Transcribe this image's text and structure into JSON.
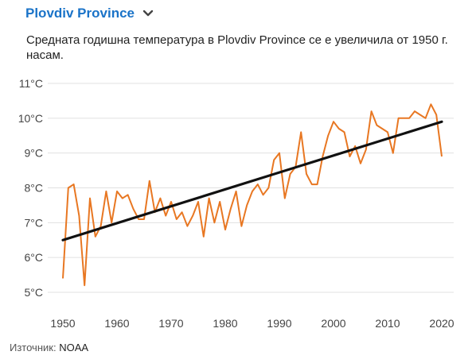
{
  "header": {
    "title": "Plovdiv Province",
    "chevron_icon": "chevron-down-icon"
  },
  "chart_data": {
    "type": "line",
    "title": "Средната годишна температура в Plovdiv Province се е увеличила от 1950 г. насам.",
    "xlabel": "",
    "ylabel": "",
    "xlim": [
      1950,
      2020
    ],
    "ylim": [
      5,
      11
    ],
    "x_ticks": [
      "1950",
      "1960",
      "1970",
      "1980",
      "1990",
      "2000",
      "2010",
      "2020"
    ],
    "y_ticks": [
      "5°C",
      "6°C",
      "7°C",
      "8°C",
      "9°C",
      "10°C",
      "11°C"
    ],
    "grid": true,
    "colors": {
      "series": "#e87722",
      "trend": "#111111",
      "grid": "#e0e0e0"
    },
    "series": [
      {
        "x": [
          1950,
          1951,
          1952,
          1953,
          1954,
          1955,
          1956,
          1957,
          1958,
          1959,
          1960,
          1961,
          1962,
          1963,
          1964,
          1965,
          1966,
          1967,
          1968,
          1969,
          1970,
          1971,
          1972,
          1973,
          1974,
          1975,
          1976,
          1977,
          1978,
          1979,
          1980,
          1981,
          1982,
          1983,
          1984,
          1985,
          1986,
          1987,
          1988,
          1989,
          1990,
          1991,
          1992,
          1993,
          1994,
          1995,
          1996,
          1997,
          1998,
          1999,
          2000,
          2001,
          2002,
          2003,
          2004,
          2005,
          2006,
          2007,
          2008,
          2009,
          2010,
          2011,
          2012,
          2013,
          2014,
          2015,
          2016,
          2017,
          2018,
          2019,
          2020
        ],
        "values": [
          5.4,
          8.0,
          8.1,
          7.2,
          5.2,
          7.7,
          6.6,
          6.9,
          7.9,
          7.0,
          7.9,
          7.7,
          7.8,
          7.4,
          7.1,
          7.1,
          8.2,
          7.3,
          7.7,
          7.2,
          7.6,
          7.1,
          7.3,
          6.9,
          7.2,
          7.6,
          6.6,
          7.7,
          7.0,
          7.6,
          6.8,
          7.4,
          7.9,
          6.9,
          7.5,
          7.9,
          8.1,
          7.8,
          8.0,
          8.8,
          9.0,
          7.7,
          8.4,
          8.6,
          9.6,
          8.4,
          8.1,
          8.1,
          8.9,
          9.5,
          9.9,
          9.7,
          9.6,
          8.9,
          9.2,
          8.7,
          9.1,
          10.2,
          9.8,
          9.7,
          9.6,
          9.0,
          10.0,
          10.0,
          10.0,
          10.2,
          10.1,
          10.0,
          10.4,
          10.1,
          8.9
        ]
      }
    ],
    "trend": {
      "x": [
        1950,
        2020
      ],
      "values": [
        6.5,
        9.9
      ]
    }
  },
  "source": {
    "label": "Източник:",
    "name": "NOAA"
  }
}
